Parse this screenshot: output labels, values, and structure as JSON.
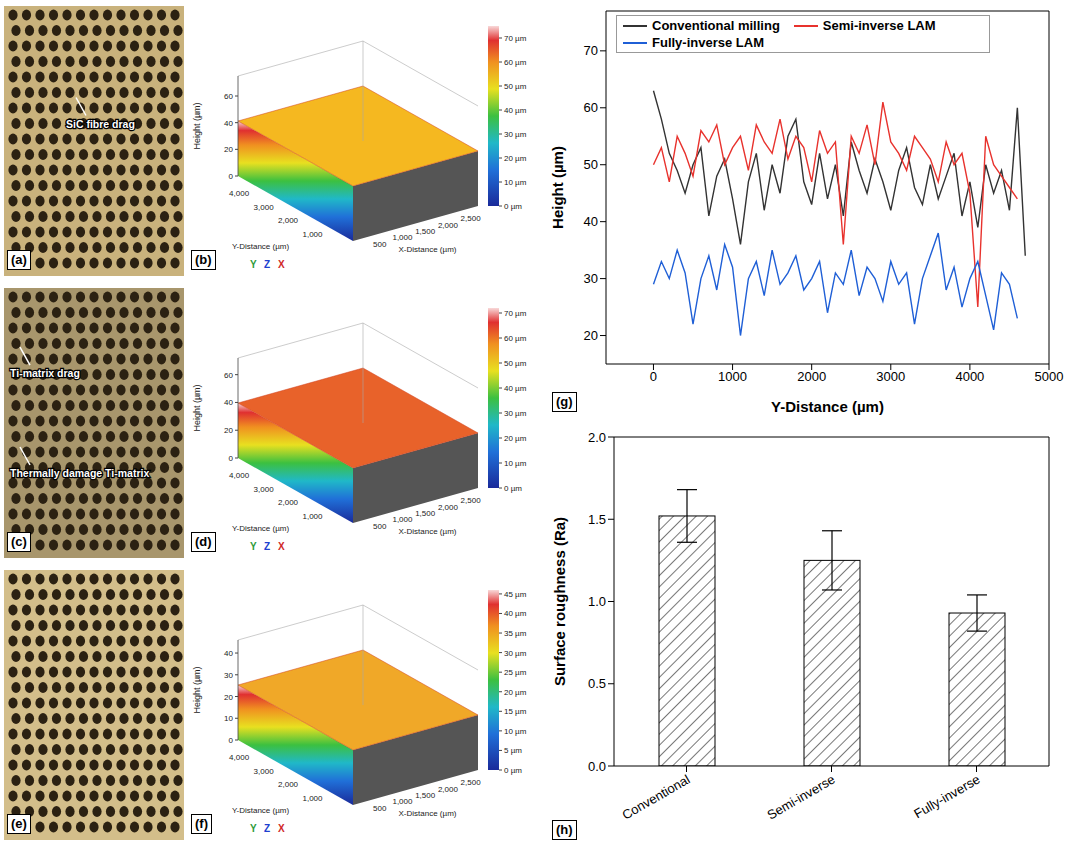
{
  "chart_data": [
    {
      "type": "line",
      "label": "(g)",
      "x_label": "Y-Distance (µm)",
      "y_label": "Height (µm)",
      "x": [
        0,
        100,
        200,
        300,
        400,
        500,
        600,
        700,
        800,
        900,
        1000,
        1100,
        1200,
        1300,
        1400,
        1500,
        1600,
        1700,
        1800,
        1900,
        2000,
        2100,
        2200,
        2300,
        2400,
        2500,
        2600,
        2700,
        2800,
        2900,
        3000,
        3100,
        3200,
        3300,
        3400,
        3500,
        3600,
        3700,
        3800,
        3900,
        4000,
        4100,
        4200,
        4300,
        4400,
        4500,
        4600,
        4700
      ],
      "series": [
        {
          "name": "Conventional milling",
          "color": "#333333",
          "values": [
            63,
            58,
            52,
            49,
            45,
            50,
            53,
            41,
            48,
            51,
            44,
            36,
            47,
            52,
            42,
            50,
            45,
            55,
            58,
            47,
            43,
            52,
            44,
            50,
            41,
            54,
            49,
            45,
            51,
            47,
            42,
            49,
            53,
            46,
            43,
            50,
            44,
            48,
            52,
            41,
            47,
            39,
            50,
            45,
            49,
            42,
            60,
            34
          ]
        },
        {
          "name": "Semi-inverse LAM",
          "color": "#e8322d",
          "values": [
            50,
            53,
            47,
            55,
            52,
            48,
            56,
            54,
            57,
            50,
            53,
            55,
            49,
            57,
            54,
            52,
            58,
            51,
            55,
            53,
            47,
            56,
            52,
            54,
            36,
            55,
            52,
            57,
            50,
            61,
            54,
            52,
            49,
            55,
            53,
            51,
            47,
            54,
            50,
            52,
            45,
            25,
            55,
            50,
            48,
            46,
            44,
            null
          ]
        },
        {
          "name": "Fully-inverse LAM",
          "color": "#1f5fd6",
          "values": [
            29,
            33,
            30,
            35,
            31,
            22,
            30,
            34,
            28,
            36,
            32,
            20,
            30,
            33,
            27,
            35,
            29,
            31,
            34,
            28,
            30,
            33,
            24,
            31,
            29,
            35,
            27,
            32,
            30,
            26,
            33,
            29,
            31,
            22,
            30,
            34,
            38,
            28,
            32,
            25,
            30,
            33,
            27,
            21,
            31,
            29,
            23,
            null
          ]
        }
      ],
      "xlim": [
        -600,
        5000
      ],
      "xticks": [
        0,
        1000,
        2000,
        3000,
        4000,
        5000
      ],
      "ylim": [
        15,
        77
      ],
      "yticks": [
        20,
        30,
        40,
        50,
        60,
        70
      ],
      "legend": "upper left",
      "grid": false
    },
    {
      "type": "bar",
      "label": "(h)",
      "y_label": "Surface roughness (Ra)",
      "categories": [
        "Conventional",
        "Semi-inverse",
        "Fully-inverse"
      ],
      "values": [
        1.52,
        1.25,
        0.93
      ],
      "errors": [
        0.16,
        0.18,
        0.11
      ],
      "color": "#555555",
      "ylim": [
        0,
        2
      ],
      "yticks": [
        {
          "value": 0,
          "label": "0.0"
        },
        {
          "value": 0.5,
          "label": "0.5"
        },
        {
          "value": 1,
          "label": "1.0"
        },
        {
          "value": 1.5,
          "label": "1.5"
        },
        {
          "value": 2,
          "label": "2.0"
        }
      ],
      "grid": false
    }
  ],
  "images": [
    {
      "label": "(a)",
      "color": "#c9b27c",
      "annotations": [
        "SiC fibre drag"
      ]
    },
    {
      "label": "(c)",
      "color": "#a8966c",
      "annotations": [
        "Ti-matrix drag",
        "Thermally damage Ti-matrix"
      ]
    },
    {
      "label": "(e)",
      "color": "#d3be8a",
      "annotations": []
    }
  ],
  "surfaces": [
    {
      "label": "(b)",
      "color": "#f5b820",
      "z_label": "Height (µm)",
      "x_label": "X-Distance (µm)",
      "y_label": "Y-Distance (µm)",
      "axes": [
        "Y",
        "Z",
        "X"
      ],
      "xlim": [
        0,
        2750
      ],
      "xticks": [
        500,
        {
          "value": 1000,
          "label": "1,000"
        },
        {
          "value": 1500,
          "label": "1,500"
        },
        {
          "value": 2000,
          "label": "2,000"
        },
        {
          "value": 2500,
          "label": "2,500"
        }
      ],
      "ylim": [
        0,
        4700
      ],
      "yticks": [
        {
          "value": 1000,
          "label": "1,000"
        },
        {
          "value": 2000,
          "label": "2,000"
        },
        {
          "value": 3000,
          "label": "3,000"
        },
        {
          "value": 4000,
          "label": "4,000"
        }
      ],
      "zlim": [
        0,
        75
      ],
      "zticks": [
        0,
        20,
        40,
        60
      ],
      "colorbar_range": [
        0,
        75
      ],
      "colorbar_ticks": [
        {
          "value": 0,
          "label": "0 µm"
        },
        {
          "value": 10,
          "label": "10 µm"
        },
        {
          "value": 20,
          "label": "20 µm"
        },
        {
          "value": 30,
          "label": "30 µm"
        },
        {
          "value": 40,
          "label": "40 µm"
        },
        {
          "value": 50,
          "label": "50 µm"
        },
        {
          "value": 60,
          "label": "60 µm"
        },
        {
          "value": 70,
          "label": "70 µm"
        }
      ]
    },
    {
      "label": "(d)",
      "color": "#e8622a",
      "z_label": "Height (µm)",
      "x_label": "X-Distance (µm)",
      "y_label": "Y-Distance (µm)",
      "axes": [
        "Y",
        "Z",
        "X"
      ],
      "xlim": [
        0,
        2750
      ],
      "xticks": [
        500,
        {
          "value": 1000,
          "label": "1,000"
        },
        {
          "value": 1500,
          "label": "1,500"
        },
        {
          "value": 2000,
          "label": "2,000"
        },
        {
          "value": 2500,
          "label": "2,500"
        }
      ],
      "ylim": [
        0,
        4700
      ],
      "yticks": [
        {
          "value": 1000,
          "label": "1,000"
        },
        {
          "value": 2000,
          "label": "2,000"
        },
        {
          "value": 3000,
          "label": "3,000"
        },
        {
          "value": 4000,
          "label": "4,000"
        }
      ],
      "zlim": [
        0,
        72
      ],
      "zticks": [
        0,
        20,
        40,
        60
      ],
      "colorbar_range": [
        0,
        72
      ],
      "colorbar_ticks": [
        {
          "value": 0,
          "label": "0 µm"
        },
        {
          "value": 10,
          "label": "10 µm"
        },
        {
          "value": 20,
          "label": "20 µm"
        },
        {
          "value": 30,
          "label": "30 µm"
        },
        {
          "value": 40,
          "label": "40 µm"
        },
        {
          "value": 50,
          "label": "50 µm"
        },
        {
          "value": 60,
          "label": "60 µm"
        },
        {
          "value": 70,
          "label": "70 µm"
        }
      ]
    },
    {
      "label": "(f)",
      "color": "#f0a828",
      "z_label": "Height (µm)",
      "x_label": "X-Distance (µm)",
      "y_label": "Y-Distance (µm)",
      "axes": [
        "Y",
        "Z",
        "X"
      ],
      "xlim": [
        0,
        2750
      ],
      "xticks": [
        500,
        {
          "value": 1000,
          "label": "1,000"
        },
        {
          "value": 1500,
          "label": "1,500"
        },
        {
          "value": 2000,
          "label": "2,000"
        },
        {
          "value": 2500,
          "label": "2,500"
        }
      ],
      "ylim": [
        0,
        4700
      ],
      "yticks": [
        {
          "value": 1000,
          "label": "1,000"
        },
        {
          "value": 2000,
          "label": "2,000"
        },
        {
          "value": 3000,
          "label": "3,000"
        },
        {
          "value": 4000,
          "label": "4,000"
        }
      ],
      "zlim": [
        0,
        46
      ],
      "zticks": [
        0,
        10,
        20,
        30,
        40
      ],
      "colorbar_range": [
        0,
        46
      ],
      "colorbar_ticks": [
        {
          "value": 0,
          "label": "0 µm"
        },
        {
          "value": 5,
          "label": "5 µm"
        },
        {
          "value": 10,
          "label": "10 µm"
        },
        {
          "value": 15,
          "label": "15 µm"
        },
        {
          "value": 20,
          "label": "20 µm"
        },
        {
          "value": 25,
          "label": "25 µm"
        },
        {
          "value": 30,
          "label": "30 µm"
        },
        {
          "value": 35,
          "label": "35 µm"
        },
        {
          "value": 40,
          "label": "40 µm"
        },
        {
          "value": 45,
          "label": "45 µm"
        }
      ]
    }
  ]
}
